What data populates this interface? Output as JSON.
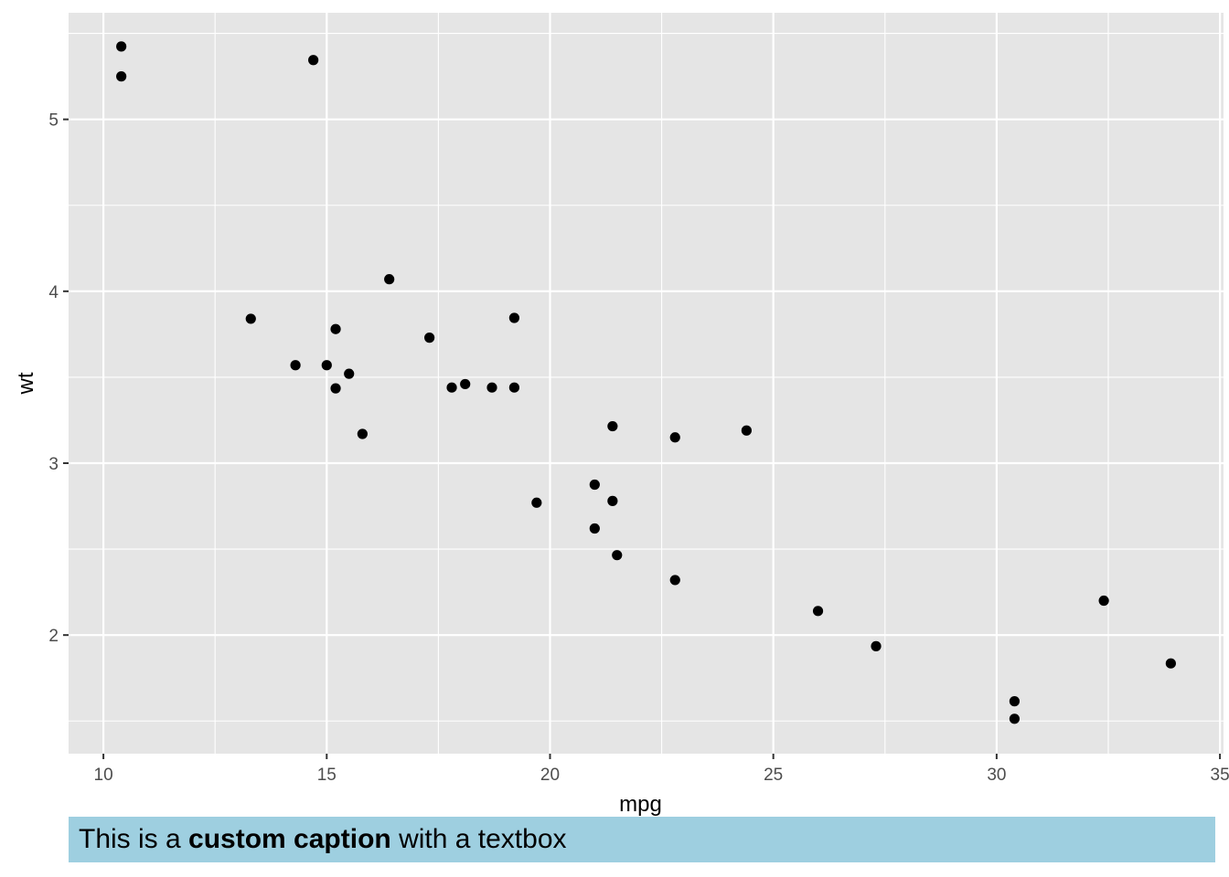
{
  "chart_data": {
    "type": "scatter",
    "xlabel": "mpg",
    "ylabel": "wt",
    "xlim": [
      9.22,
      35.08
    ],
    "ylim": [
      1.31,
      5.62
    ],
    "x_ticks": [
      10,
      15,
      20,
      25,
      30,
      35
    ],
    "x_tick_labels": [
      "10",
      "15",
      "20",
      "25",
      "30",
      "35"
    ],
    "y_ticks": [
      2,
      3,
      4,
      5
    ],
    "y_tick_labels": [
      "2",
      "3",
      "4",
      "5"
    ],
    "grid": true,
    "panel_background": "#e5e5e5",
    "grid_color": "#ffffff",
    "point_color": "#000000",
    "points": [
      {
        "x": 21.0,
        "y": 2.62
      },
      {
        "x": 21.0,
        "y": 2.875
      },
      {
        "x": 22.8,
        "y": 2.32
      },
      {
        "x": 21.4,
        "y": 3.215
      },
      {
        "x": 18.7,
        "y": 3.44
      },
      {
        "x": 18.1,
        "y": 3.46
      },
      {
        "x": 14.3,
        "y": 3.57
      },
      {
        "x": 24.4,
        "y": 3.19
      },
      {
        "x": 22.8,
        "y": 3.15
      },
      {
        "x": 19.2,
        "y": 3.44
      },
      {
        "x": 17.8,
        "y": 3.44
      },
      {
        "x": 16.4,
        "y": 4.07
      },
      {
        "x": 17.3,
        "y": 3.73
      },
      {
        "x": 15.2,
        "y": 3.78
      },
      {
        "x": 10.4,
        "y": 5.25
      },
      {
        "x": 10.4,
        "y": 5.424
      },
      {
        "x": 14.7,
        "y": 5.345
      },
      {
        "x": 32.4,
        "y": 2.2
      },
      {
        "x": 30.4,
        "y": 1.615
      },
      {
        "x": 33.9,
        "y": 1.835
      },
      {
        "x": 21.5,
        "y": 2.465
      },
      {
        "x": 15.5,
        "y": 3.52
      },
      {
        "x": 15.2,
        "y": 3.435
      },
      {
        "x": 13.3,
        "y": 3.84
      },
      {
        "x": 19.2,
        "y": 3.845
      },
      {
        "x": 27.3,
        "y": 1.935
      },
      {
        "x": 26.0,
        "y": 2.14
      },
      {
        "x": 30.4,
        "y": 1.513
      },
      {
        "x": 15.8,
        "y": 3.17
      },
      {
        "x": 19.7,
        "y": 2.77
      },
      {
        "x": 15.0,
        "y": 3.57
      },
      {
        "x": 21.4,
        "y": 2.78
      }
    ]
  },
  "caption": {
    "prefix": "This is a ",
    "bold": "custom caption",
    "suffix": " with a textbox",
    "background": "#9ecfe0"
  }
}
